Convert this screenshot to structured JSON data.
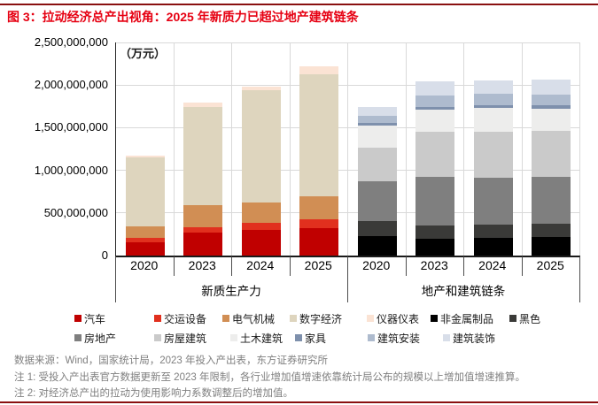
{
  "page": {
    "title": "图 3：拉动经济总产出视角：2025 年新质力已超过地产建筑链条",
    "accent_color": "#E60012",
    "rule_color": "#8A1010"
  },
  "chart": {
    "unit_label": "（万元）"
  },
  "chart_data": {
    "type": "bar",
    "stacked": true,
    "title": "拉动经济总产出视角：2025 年新质力已超过地产建筑链条",
    "ylabel": "万元",
    "ylim": [
      0,
      2500000000
    ],
    "ytick_step": 500000000,
    "ytick_labels": [
      "0",
      "500,000,000",
      "1,000,000,000",
      "1,500,000,000",
      "2,000,000,000",
      "2,500,000,000"
    ],
    "grid": true,
    "legend_position": "bottom",
    "groups": [
      {
        "label": "新质生产力",
        "categories": [
          "2020",
          "2023",
          "2024",
          "2025"
        ],
        "series": [
          {
            "name": "汽车",
            "color": "#C00000",
            "values": [
              160000000,
              270000000,
              300000000,
              325000000
            ]
          },
          {
            "name": "交运设备",
            "color": "#E1301E",
            "values": [
              50000000,
              65000000,
              80000000,
              100000000
            ]
          },
          {
            "name": "电气机械",
            "color": "#D18E54",
            "values": [
              130000000,
              255000000,
              245000000,
              275000000
            ]
          },
          {
            "name": "数字经济",
            "color": "#DED5BE",
            "values": [
              810000000,
              1155000000,
              1315000000,
              1430000000
            ]
          },
          {
            "name": "仪器仪表",
            "color": "#FBE3D4",
            "values": [
              25000000,
              55000000,
              45000000,
              90000000
            ]
          }
        ]
      },
      {
        "label": "地产和建筑链条",
        "categories": [
          "2020",
          "2023",
          "2024",
          "2025"
        ],
        "series": [
          {
            "name": "非金属制品",
            "color": "#000000",
            "values": [
              230000000,
              200000000,
              205000000,
              215000000
            ]
          },
          {
            "name": "黑色",
            "color": "#3A3A38",
            "values": [
              170000000,
              150000000,
              155000000,
              160000000
            ]
          },
          {
            "name": "房地产",
            "color": "#7F7F7F",
            "values": [
              470000000,
              570000000,
              550000000,
              550000000
            ]
          },
          {
            "name": "房屋建筑",
            "color": "#CACACA",
            "values": [
              395000000,
              530000000,
              545000000,
              535000000
            ]
          },
          {
            "name": "土木建筑",
            "color": "#EDEDEC",
            "values": [
              265000000,
              260000000,
              275000000,
              260000000
            ]
          },
          {
            "name": "家具",
            "color": "#7E90AC",
            "values": [
              25000000,
              35000000,
              35000000,
              40000000
            ]
          },
          {
            "name": "建筑安装",
            "color": "#AEBBCE",
            "values": [
              85000000,
              135000000,
              135000000,
              130000000
            ]
          },
          {
            "name": "建筑装饰",
            "color": "#D8DEE9",
            "values": [
              105000000,
              160000000,
              160000000,
              170000000
            ]
          }
        ]
      }
    ]
  },
  "legend": {
    "rows": [
      [
        "汽车",
        "交运设备",
        "电气机械",
        "数字经济",
        "仪器仪表",
        "非金属制品",
        "黑色"
      ],
      [
        "房地产",
        "房屋建筑",
        "土木建筑",
        "家具",
        "建筑安装",
        "建筑装饰"
      ]
    ]
  },
  "footer": {
    "source": "数据来源：Wind，国家统计局，2023 年投入产出表，东方证券研究所",
    "note1": "注 1: 受投入产出表官方数据更新至 2023 年限制，各行业增加值增速依靠统计局公布的规模以上增加值增速推算。",
    "note2": "注 2: 对经济总产出的拉动为使用影响力系数调整后的增加值。"
  }
}
